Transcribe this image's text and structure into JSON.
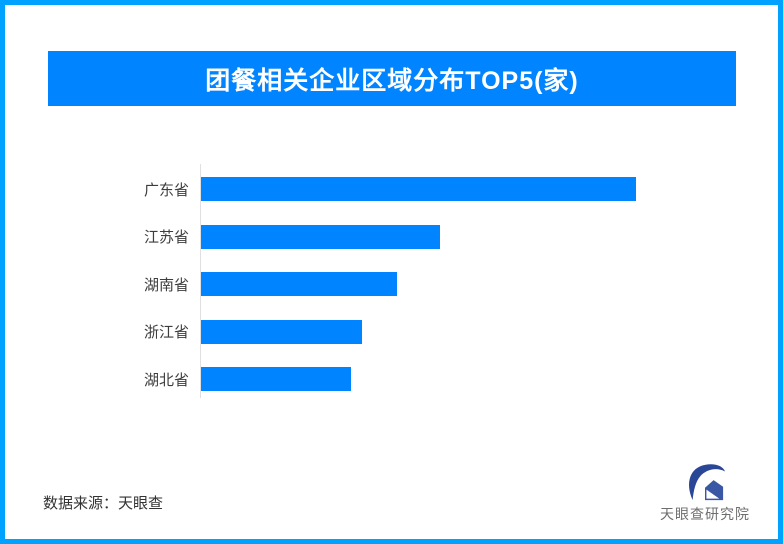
{
  "page": {
    "background": "#FFFFFF",
    "border_color": "#00A2FF"
  },
  "header": {
    "title": "团餐相关企业区域分布TOP5(家)",
    "banner_color": "#0084FF",
    "title_color": "#FFFFFF"
  },
  "chart_data": {
    "type": "bar",
    "orientation": "horizontal",
    "title": "团餐相关企业区域分布TOP5(家)",
    "categories": [
      "广东省",
      "江苏省",
      "湖南省",
      "浙江省",
      "湖北省"
    ],
    "values": [
      435,
      239,
      196,
      161,
      150
    ],
    "value_labels_shown": false,
    "value_note": "no numeric axis or data labels visible; values are relative bar lengths measured in pixels",
    "xlim": [
      0,
      537
    ],
    "xlabel": "",
    "ylabel": "",
    "grid": false,
    "legend": false,
    "bar_color": "#0084FF",
    "axis_line_color": "#E0E0E0",
    "label_color": "#3D3D3D"
  },
  "footer": {
    "source_text": "数据来源：天眼查",
    "logo_text": "天眼查研究院",
    "logo_navy": "#2A4697",
    "logo_blue": "#3A57A5"
  }
}
